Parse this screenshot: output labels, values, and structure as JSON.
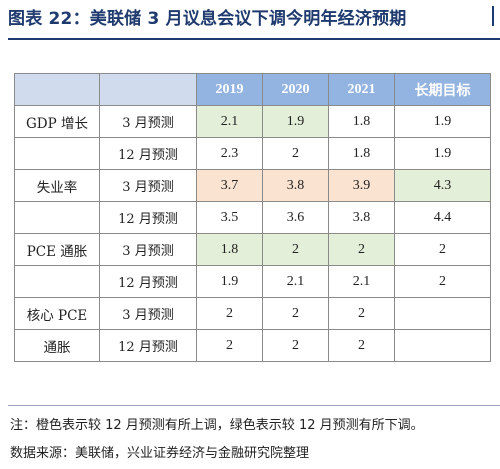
{
  "title": "图表 22：美联储 3 月议息会议下调今明年经济预期",
  "table": {
    "headers": [
      "2019",
      "2020",
      "2021",
      "长期目标"
    ],
    "rows": [
      {
        "metric": "GDP 增长",
        "sub": "3 月预测",
        "values": [
          "2.1",
          "1.9",
          "1.8",
          "1.9"
        ],
        "status": [
          "down",
          "down",
          "",
          ""
        ]
      },
      {
        "metric": "",
        "sub": "12 月预测",
        "values": [
          "2.3",
          "2",
          "1.8",
          "1.9"
        ],
        "status": [
          "",
          "",
          "",
          ""
        ]
      },
      {
        "metric": "失业率",
        "sub": "3 月预测",
        "values": [
          "3.7",
          "3.8",
          "3.9",
          "4.3"
        ],
        "status": [
          "up",
          "up",
          "up",
          "down"
        ]
      },
      {
        "metric": "",
        "sub": "12 月预测",
        "values": [
          "3.5",
          "3.6",
          "3.8",
          "4.4"
        ],
        "status": [
          "",
          "",
          "",
          ""
        ]
      },
      {
        "metric": "PCE 通胀",
        "sub": "3 月预测",
        "values": [
          "1.8",
          "2",
          "2",
          "2"
        ],
        "status": [
          "down",
          "down",
          "down",
          ""
        ]
      },
      {
        "metric": "",
        "sub": "12 月预测",
        "values": [
          "1.9",
          "2.1",
          "2.1",
          "2"
        ],
        "status": [
          "",
          "",
          "",
          ""
        ]
      },
      {
        "metric": "核心 PCE",
        "sub": "3 月预测",
        "values": [
          "2",
          "2",
          "2",
          ""
        ],
        "status": [
          "",
          "",
          "",
          ""
        ]
      },
      {
        "metric": "通胀",
        "sub": "12 月预测",
        "values": [
          "2",
          "2",
          "2",
          ""
        ],
        "status": [
          "",
          "",
          "",
          ""
        ]
      }
    ]
  },
  "note": "注：橙色表示较 12 月预测有所上调，绿色表示较 12 月预测有所下调。",
  "source": "数据来源：美联储，兴业证券经济与金融研究院整理",
  "colors": {
    "up": "#fbe3d2",
    "down": "#e3efd8",
    "header": "#93b4e0",
    "title": "#1e3a6e"
  }
}
